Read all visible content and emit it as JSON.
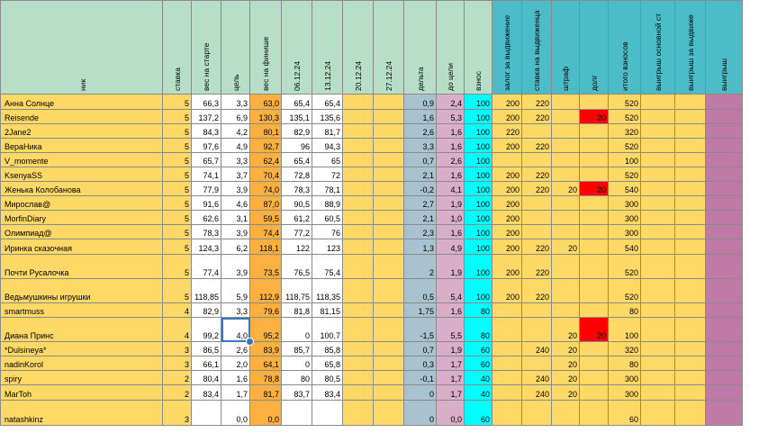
{
  "headers": [
    {
      "key": "name",
      "label": "ник"
    },
    {
      "key": "stake",
      "label": "ставка"
    },
    {
      "key": "start_weight",
      "label": "вес на старте"
    },
    {
      "key": "goal",
      "label": "цель"
    },
    {
      "key": "finish_weight",
      "label": "вес на финише"
    },
    {
      "key": "d0612",
      "label": "06.12.24"
    },
    {
      "key": "d1312",
      "label": "13.12.24"
    },
    {
      "key": "d2012",
      "label": "20.12.24"
    },
    {
      "key": "d2712",
      "label": "27.12.24"
    },
    {
      "key": "delta",
      "label": "дельта"
    },
    {
      "key": "to_goal",
      "label": "до цели"
    },
    {
      "key": "fee",
      "label": "взнос"
    },
    {
      "key": "deposit",
      "label": "залог за выдвижение"
    },
    {
      "key": "stake_promo",
      "label": "ставка на выдвиженца"
    },
    {
      "key": "fine",
      "label": "штраф"
    },
    {
      "key": "debt",
      "label": "долг"
    },
    {
      "key": "total_fees",
      "label": "итого взносов"
    },
    {
      "key": "win_main",
      "label": "выигрыш основной ст"
    },
    {
      "key": "win_promo",
      "label": "выигрыш за выдвиже"
    },
    {
      "key": "win",
      "label": "выигрыш"
    }
  ],
  "rows": [
    {
      "name": "Анна Солнце",
      "stake": "5",
      "start_weight": "66,3",
      "goal": "3,3",
      "finish_weight": "63,0",
      "d0612": "65,4",
      "d1312": "65,4",
      "d2012": "",
      "d2712": "",
      "delta": "0,9",
      "to_goal": "2,4",
      "fee": "100",
      "deposit": "200",
      "stake_promo": "220",
      "fine": "",
      "debt": "",
      "total_fees": "520",
      "win_main": "",
      "win_promo": "",
      "win": ""
    },
    {
      "name": "Reisende",
      "stake": "5",
      "start_weight": "137,2",
      "goal": "6,9",
      "finish_weight": "130,3",
      "d0612": "135,1",
      "d1312": "135,6",
      "d2012": "",
      "d2712": "",
      "delta": "1,6",
      "to_goal": "5,3",
      "fee": "100",
      "deposit": "200",
      "stake_promo": "220",
      "fine": "",
      "debt": "20",
      "total_fees": "520",
      "win_main": "",
      "win_promo": "",
      "win": ""
    },
    {
      "name": "2Jane2",
      "stake": "5",
      "start_weight": "84,3",
      "goal": "4,2",
      "finish_weight": "80,1",
      "d0612": "82,9",
      "d1312": "81,7",
      "d2012": "",
      "d2712": "",
      "delta": "2,6",
      "to_goal": "1,6",
      "fee": "100",
      "deposit": "220",
      "stake_promo": "",
      "fine": "",
      "debt": "",
      "total_fees": "320",
      "win_main": "",
      "win_promo": "",
      "win": ""
    },
    {
      "name": "ВераНика",
      "stake": "5",
      "start_weight": "97,6",
      "goal": "4,9",
      "finish_weight": "92,7",
      "d0612": "96",
      "d1312": "94,3",
      "d2012": "",
      "d2712": "",
      "delta": "3,3",
      "to_goal": "1,6",
      "fee": "100",
      "deposit": "200",
      "stake_promo": "220",
      "fine": "",
      "debt": "",
      "total_fees": "520",
      "win_main": "",
      "win_promo": "",
      "win": ""
    },
    {
      "name": "V_momente",
      "stake": "5",
      "start_weight": "65,7",
      "goal": "3,3",
      "finish_weight": "62,4",
      "d0612": "65,4",
      "d1312": "65",
      "d2012": "",
      "d2712": "",
      "delta": "0,7",
      "to_goal": "2,6",
      "fee": "100",
      "deposit": "",
      "stake_promo": "",
      "fine": "",
      "debt": "",
      "total_fees": "100",
      "win_main": "",
      "win_promo": "",
      "win": ""
    },
    {
      "name": "KsenyaSS",
      "stake": "5",
      "start_weight": "74,1",
      "goal": "3,7",
      "finish_weight": "70,4",
      "d0612": "72,8",
      "d1312": "72",
      "d2012": "",
      "d2712": "",
      "delta": "2,1",
      "to_goal": "1,6",
      "fee": "100",
      "deposit": "200",
      "stake_promo": "220",
      "fine": "",
      "debt": "",
      "total_fees": "520",
      "win_main": "",
      "win_promo": "",
      "win": ""
    },
    {
      "name": "Женька Колобанова",
      "stake": "5",
      "start_weight": "77,9",
      "goal": "3,9",
      "finish_weight": "74,0",
      "d0612": "78,3",
      "d1312": "78,1",
      "d2012": "",
      "d2712": "",
      "delta": "-0,2",
      "to_goal": "4,1",
      "fee": "100",
      "deposit": "200",
      "stake_promo": "220",
      "fine": "20",
      "debt": "20",
      "total_fees": "540",
      "win_main": "",
      "win_promo": "",
      "win": ""
    },
    {
      "name": "Мирослав@",
      "stake": "5",
      "start_weight": "91,6",
      "goal": "4,6",
      "finish_weight": "87,0",
      "d0612": "90,5",
      "d1312": "88,9",
      "d2012": "",
      "d2712": "",
      "delta": "2,7",
      "to_goal": "1,9",
      "fee": "100",
      "deposit": "200",
      "stake_promo": "",
      "fine": "",
      "debt": "",
      "total_fees": "300",
      "win_main": "",
      "win_promo": "",
      "win": ""
    },
    {
      "name": " MorfinDiary",
      "stake": "5",
      "start_weight": "62,6",
      "goal": "3,1",
      "finish_weight": "59,5",
      "d0612": "61,2",
      "d1312": "60,5",
      "d2012": "",
      "d2712": "",
      "delta": "2,1",
      "to_goal": "1,0",
      "fee": "100",
      "deposit": "200",
      "stake_promo": "",
      "fine": "",
      "debt": "",
      "total_fees": "300",
      "win_main": "",
      "win_promo": "",
      "win": ""
    },
    {
      "name": " Олимпиад@",
      "stake": "5",
      "start_weight": "78,3",
      "goal": "3,9",
      "finish_weight": "74,4",
      "d0612": "77,2",
      "d1312": "76",
      "d2012": "",
      "d2712": "",
      "delta": "2,3",
      "to_goal": "1,6",
      "fee": "100",
      "deposit": "200",
      "stake_promo": "",
      "fine": "",
      "debt": "",
      "total_fees": "300",
      "win_main": "",
      "win_promo": "",
      "win": ""
    },
    {
      "name": "Иринка сказочная",
      "stake": "5",
      "start_weight": "124,3",
      "goal": "6,2",
      "finish_weight": "118,1",
      "d0612": "122",
      "d1312": "123",
      "d2012": "",
      "d2712": "",
      "delta": "1,3",
      "to_goal": "4,9",
      "fee": "100",
      "deposit": "200",
      "stake_promo": "220",
      "fine": "20",
      "debt": "",
      "total_fees": "540",
      "win_main": "",
      "win_promo": "",
      "win": ""
    },
    {
      "name": "Почти Русалочка",
      "stake": "5",
      "start_weight": "77,4",
      "goal": "3,9",
      "finish_weight": "73,5",
      "d0612": "76,5",
      "d1312": "75,4",
      "d2012": "",
      "d2712": "",
      "delta": "2",
      "to_goal": "1,9",
      "fee": "100",
      "deposit": "200",
      "stake_promo": "220",
      "fine": "",
      "debt": "",
      "total_fees": "520",
      "win_main": "",
      "win_promo": "",
      "win": ""
    },
    {
      "name": "Ведьмушкины игрушки",
      "stake": "5",
      "start_weight": "118,85",
      "goal": "5,9",
      "finish_weight": "112,9",
      "d0612": "118,75",
      "d1312": "118,35",
      "d2012": "",
      "d2712": "",
      "delta": "0,5",
      "to_goal": "5,4",
      "fee": "100",
      "deposit": "200",
      "stake_promo": "220",
      "fine": "",
      "debt": "",
      "total_fees": "520",
      "win_main": "",
      "win_promo": "",
      "win": ""
    },
    {
      "name": "smartmuss",
      "stake": "4",
      "start_weight": "82,9",
      "goal": "3,3",
      "finish_weight": "79,6",
      "d0612": "81,8",
      "d1312": "81,15",
      "d2012": "",
      "d2712": "",
      "delta": "1,75",
      "to_goal": "1,6",
      "fee": "80",
      "deposit": "",
      "stake_promo": "",
      "fine": "",
      "debt": "",
      "total_fees": "80",
      "win_main": "",
      "win_promo": "",
      "win": ""
    },
    {
      "name": "Диана Принс",
      "stake": "4",
      "start_weight": "99,2",
      "goal": "4,0",
      "finish_weight": "95,2",
      "d0612": "0",
      "d1312": "100,7",
      "d2012": "",
      "d2712": "",
      "delta": "-1,5",
      "to_goal": "5,5",
      "fee": "80",
      "deposit": "",
      "stake_promo": "",
      "fine": "20",
      "debt": "20",
      "total_fees": "100",
      "win_main": "",
      "win_promo": "",
      "win": ""
    },
    {
      "name": "*Dulsineya*",
      "stake": "3",
      "start_weight": "86,5",
      "goal": "2,6",
      "finish_weight": "83,9",
      "d0612": "85,7",
      "d1312": "85,8",
      "d2012": "",
      "d2712": "",
      "delta": "0,7",
      "to_goal": "1,9",
      "fee": "60",
      "deposit": "",
      "stake_promo": "240",
      "fine": "20",
      "debt": "",
      "total_fees": "320",
      "win_main": "",
      "win_promo": "",
      "win": ""
    },
    {
      "name": " nadinKorol",
      "stake": "3",
      "start_weight": "66,1",
      "goal": "2,0",
      "finish_weight": "64,1",
      "d0612": "0",
      "d1312": "65,8",
      "d2012": "",
      "d2712": "",
      "delta": "0,3",
      "to_goal": "1,7",
      "fee": "60",
      "deposit": "",
      "stake_promo": "",
      "fine": "20",
      "debt": "",
      "total_fees": "80",
      "win_main": "",
      "win_promo": "",
      "win": ""
    },
    {
      "name": "spiry",
      "stake": "2",
      "start_weight": "80,4",
      "goal": "1,6",
      "finish_weight": "78,8",
      "d0612": "80",
      "d1312": "80,5",
      "d2012": "",
      "d2712": "",
      "delta": "-0,1",
      "to_goal": "1,7",
      "fee": "40",
      "deposit": "",
      "stake_promo": "240",
      "fine": "20",
      "debt": "",
      "total_fees": "300",
      "win_main": "",
      "win_promo": "",
      "win": ""
    },
    {
      "name": "MarToh",
      "stake": "2",
      "start_weight": "83,4",
      "goal": "1,7",
      "finish_weight": "81,7",
      "d0612": "83,7",
      "d1312": "83,4",
      "d2012": "",
      "d2712": "",
      "delta": "0",
      "to_goal": "1,7",
      "fee": "40",
      "deposit": "",
      "stake_promo": "240",
      "fine": "20",
      "debt": "",
      "total_fees": "300",
      "win_main": "",
      "win_promo": "",
      "win": ""
    },
    {
      "name": "natashkinz",
      "stake": "3",
      "start_weight": "",
      "goal": "0,0",
      "finish_weight": "0,0",
      "d0612": "",
      "d1312": "",
      "d2012": "",
      "d2712": "",
      "delta": "0",
      "to_goal": "0,0",
      "fee": "60",
      "deposit": "",
      "stake_promo": "",
      "fine": "",
      "debt": "",
      "total_fees": "60",
      "win_main": "",
      "win_promo": "",
      "win": ""
    }
  ],
  "colors": {
    "header": "#b7dfc7",
    "header_teal": "#4bbcc8",
    "body": "#ffd966",
    "finish": "#fbb040",
    "delta": "#a9c2cf",
    "to_goal": "#d9aec9",
    "fee": "#00ffff",
    "win": "#c07aa8",
    "debt": "#ff0000",
    "selection": "#3a75c4"
  },
  "selected_cell": {
    "row": 14,
    "col": "goal",
    "value": "4,0"
  }
}
